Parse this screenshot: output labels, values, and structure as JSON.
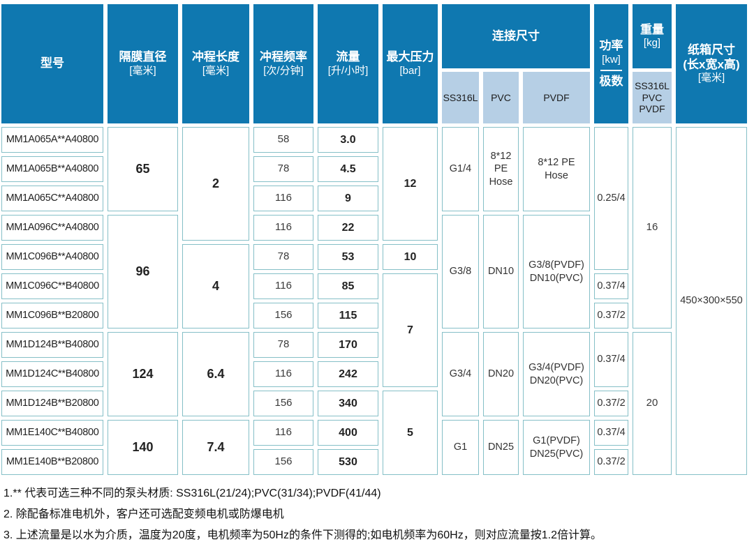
{
  "colors": {
    "header_bg": "#0f78b0",
    "subheader_bg": "#b6cfe5",
    "cell_border": "#85bfc7"
  },
  "header": {
    "model": "型号",
    "diaphragm": {
      "title": "隔膜直径",
      "unit": "[毫米]"
    },
    "stroke": {
      "title": "冲程长度",
      "unit": "[毫米]"
    },
    "frequency": {
      "title": "冲程频率",
      "unit": "[次/分钟]"
    },
    "flow": {
      "title": "流量",
      "unit": "[升/小时]"
    },
    "pressure": {
      "title": "最大压力",
      "unit": "[bar]"
    },
    "connection": {
      "title": "连接尺寸",
      "sub": [
        "SS316L",
        "PVC",
        "PVDF"
      ]
    },
    "power": {
      "title": "功率",
      "unit": "[kw]",
      "sub": "极数"
    },
    "weight": {
      "title": "重量",
      "unit": "[kg]",
      "sub": [
        "SS316L",
        "PVC",
        "PVDF"
      ]
    },
    "carton": {
      "title": "纸箱尺寸",
      "line2": "(长x宽x高)",
      "unit": "[毫米]"
    }
  },
  "body": {
    "models": [
      "MM1A065A**A40800",
      "MM1A065B**A40800",
      "MM1A065C**A40800",
      "MM1A096C**A40800",
      "MM1C096B**A40800",
      "MM1C096C**B40800",
      "MM1C096B**B20800",
      "MM1D124B**B40800",
      "MM1D124C**B40800",
      "MM1D124B**B20800",
      "MM1E140C**B40800",
      "MM1E140B**B20800"
    ],
    "frequencies": [
      "58",
      "78",
      "116",
      "116",
      "78",
      "116",
      "156",
      "78",
      "116",
      "156",
      "116",
      "156"
    ],
    "flows": [
      "3.0",
      "4.5",
      "9",
      "22",
      "53",
      "85",
      "115",
      "170",
      "242",
      "340",
      "400",
      "530"
    ],
    "diaphragm": [
      "65",
      "96",
      "124",
      "140"
    ],
    "stroke": [
      "2",
      "4",
      "6.4",
      "7.4"
    ],
    "pressure": [
      "12",
      "10",
      "7",
      "5"
    ],
    "connections": [
      {
        "ss316l": "G1/4",
        "pvc": "8*12 PE Hose",
        "pvdf": "8*12 PE Hose"
      },
      {
        "ss316l": "G3/8",
        "pvc": "DN10",
        "pvdf": "G3/8(PVDF) DN10(PVC)"
      },
      {
        "ss316l": "G3/4",
        "pvc": "DN20",
        "pvdf": "G3/4(PVDF) DN20(PVC)"
      },
      {
        "ss316l": "G1",
        "pvc": "DN25",
        "pvdf": "G1(PVDF) DN25(PVC)"
      }
    ],
    "power": [
      "0.25/4",
      "0.37/4",
      "0.37/2",
      "0.37/4",
      "0.37/2",
      "0.37/4",
      "0.37/2"
    ],
    "weights": [
      "16",
      "20"
    ],
    "carton": "450×300×550"
  },
  "notes": [
    "1.** 代表可选三种不同的泵头材质: SS316L(21/24);PVC(31/34);PVDF(41/44)",
    "2. 除配备标准电机外，客户还可选配变频电机或防爆电机",
    "3. 上述流量是以水为介质，温度为20度，电机频率为50Hz的条件下测得的;如电机频率为60Hz，则对应流量按1.2倍计算。"
  ]
}
